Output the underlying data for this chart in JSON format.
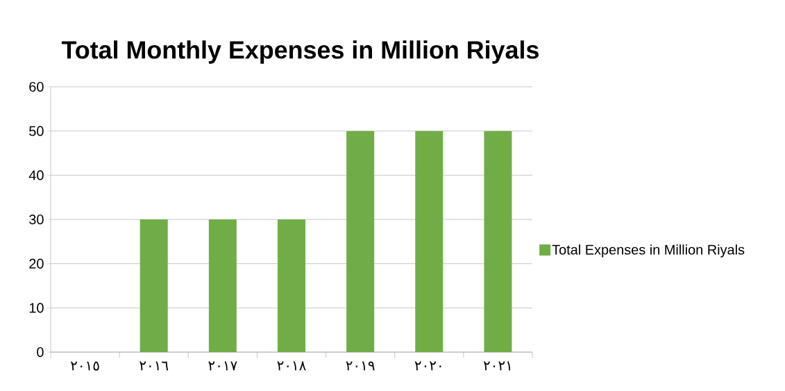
{
  "chart_data": {
    "type": "bar",
    "title": "Total Monthly Expenses in Million Riyals",
    "categories": [
      "٢٠١٥",
      "٢٠١٦",
      "٢٠١٧",
      "٢٠١٨",
      "٢٠١٩",
      "٢٠٢٠",
      "٢٠٢١"
    ],
    "series": [
      {
        "name": "Total Expenses in Million Riyals",
        "color": "#70ad47",
        "values": [
          0,
          30,
          30,
          30,
          50,
          50,
          50
        ]
      }
    ],
    "ylim": [
      0,
      60
    ],
    "yticks": [
      0,
      10,
      20,
      30,
      40,
      50,
      60
    ],
    "grid": "y",
    "legend": "right"
  }
}
